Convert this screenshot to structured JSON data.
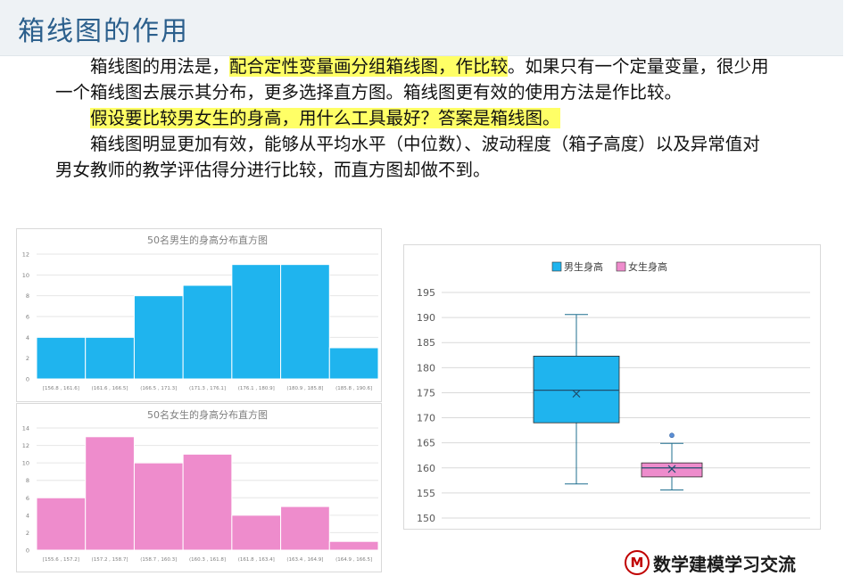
{
  "slide": {
    "title": "箱线图的作用",
    "p1_a": "箱线图的用法是，",
    "p1_hl": "配合定性变量画分组箱线图，作比较",
    "p1_b": "。如果只有一个定量变量，很少用一个箱线图去展示其分布，更多选择直方图。箱线图更有效的使用方法是作比较。",
    "p2_hl": "假设要比较男女生的身高，用什么工具最好？答案是箱线图。",
    "p3": "箱线图明显更加有效，能够从平均水平（中位数）、波动程度（箱子高度）以及异常值对男女教师的教学评估得分进行比较，而直方图却做不到。",
    "logo_text": "数学建模学习交流",
    "logo_mark": "M"
  },
  "colors": {
    "male": "#1fb4ee",
    "female": "#ee8ccc",
    "title": "#2b5f8c",
    "highlight": "#ffff66"
  },
  "chart_data": [
    {
      "type": "bar",
      "title": "50名男生的身高分布直方图",
      "categories": [
        "[156.8 , 161.6]",
        "(161.6 , 166.5]",
        "(166.5 , 171.3]",
        "(171.3 , 176.1]",
        "(176.1 , 180.9]",
        "(180.9 , 185.8]",
        "(185.8 , 190.6]"
      ],
      "values": [
        4,
        4,
        8,
        9,
        11,
        11,
        3
      ],
      "ylim": [
        0,
        12
      ],
      "yticks": [
        0,
        2,
        4,
        6,
        8,
        10,
        12
      ],
      "grid": true,
      "color": "#1fb4ee"
    },
    {
      "type": "bar",
      "title": "50名女生的身高分布直方图",
      "categories": [
        "[155.6 , 157.2]",
        "(157.2 , 158.7]",
        "(158.7 , 160.3]",
        "(160.3 , 161.8]",
        "(161.8 , 163.4]",
        "(163.4 , 164.9]",
        "(164.9 , 166.5]"
      ],
      "values": [
        6,
        13,
        10,
        11,
        4,
        5,
        1
      ],
      "ylim": [
        0,
        14
      ],
      "yticks": [
        0,
        2,
        4,
        6,
        8,
        10,
        12,
        14
      ],
      "grid": true,
      "color": "#ee8ccc"
    },
    {
      "type": "box",
      "ylim": [
        150,
        195
      ],
      "yticks": [
        150,
        155,
        160,
        165,
        170,
        175,
        180,
        185,
        190,
        195
      ],
      "grid": true,
      "legend_position": "top",
      "series": [
        {
          "name": "男生身高",
          "min": 156.8,
          "q1": 169,
          "median": 175.5,
          "q3": 182.3,
          "max": 190.6,
          "mean": 174.8,
          "outliers": [],
          "color": "#1fb4ee"
        },
        {
          "name": "女生身高",
          "min": 155.6,
          "q1": 158.2,
          "median": 160,
          "q3": 161,
          "max": 164.9,
          "mean": 159.8,
          "outliers": [
            166.5
          ],
          "color": "#ee8ccc"
        }
      ]
    }
  ]
}
